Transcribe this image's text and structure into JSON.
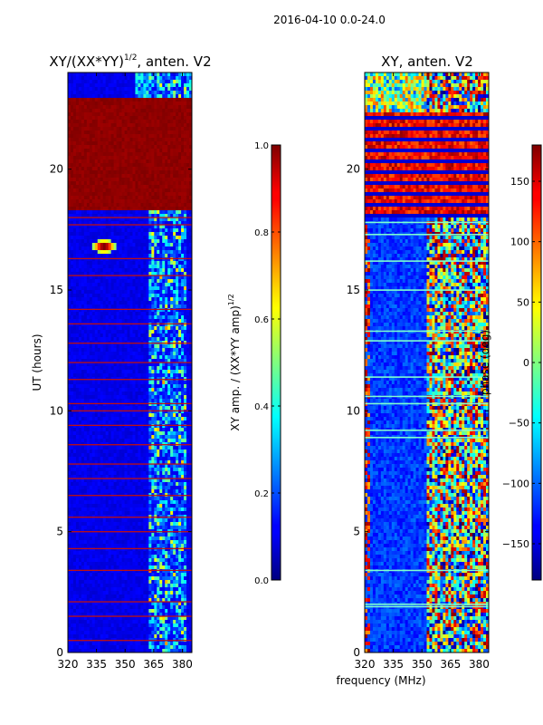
{
  "figure": {
    "suptitle": "2016-04-10 0.0-24.0",
    "shared_xlabel": "frequency (MHz)"
  },
  "chart_data": [
    {
      "type": "heatmap",
      "title": "XY/(XX*YY)",
      "title_exponent": "1/2",
      "title_suffix": ", anten. V2",
      "xlabel": "frequency (MHz)",
      "ylabel": "UT (hours)",
      "xlim": [
        320,
        385
      ],
      "ylim": [
        0,
        24
      ],
      "xticks": [
        320,
        335,
        350,
        365,
        380
      ],
      "yticks": [
        0,
        5,
        10,
        15,
        20
      ],
      "colormap": "jet",
      "colorbar": {
        "label": "XY amp. / (XX*YY amp)",
        "label_exponent": "1/2",
        "range": [
          0.0,
          1.0
        ],
        "ticks": [
          "0.0",
          "0.2",
          "0.4",
          "0.6",
          "0.8",
          "1.0"
        ]
      },
      "features": {
        "low_level": 0.08,
        "saturated_band_hours": [
          18.3,
          23.0
        ],
        "bright_region_mhz": [
          363,
          382
        ],
        "hot_spot": {
          "freq_mhz": 339,
          "ut_hours": 16.8,
          "value": 1.0
        },
        "flagged_row_hours": [
          0.5,
          1.5,
          2.1,
          3.4,
          4.3,
          5.0,
          5.6,
          6.5,
          7.2,
          7.8,
          8.6,
          9.4,
          10.0,
          10.3,
          11.3,
          12.0,
          12.8,
          13.6,
          14.2,
          15.6,
          16.3,
          17.7,
          18.0
        ]
      }
    },
    {
      "type": "heatmap",
      "title": "XY, anten. V2",
      "xlabel": "frequency (MHz)",
      "ylabel": "",
      "xlim": [
        320,
        385
      ],
      "ylim": [
        0,
        24
      ],
      "xticks": [
        320,
        335,
        350,
        365,
        380
      ],
      "yticks": [
        0,
        5,
        10,
        15,
        20
      ],
      "colormap": "jet",
      "colorbar": {
        "label": "phase (deg)",
        "range": [
          -180,
          180
        ],
        "ticks": [
          "-150",
          "-100",
          "-50",
          "0",
          "50",
          "100",
          "150"
        ]
      },
      "features": {
        "saturated_band_hours": [
          18.0,
          22.3
        ],
        "variable_region_mhz": [
          352,
          385
        ],
        "cyan_stripe_hours": [
          1.9,
          2.0,
          3.4,
          8.9,
          9.2,
          10.3,
          10.6,
          11.4,
          12.9,
          13.3,
          15.0,
          16.2,
          17.3,
          17.8
        ]
      }
    }
  ]
}
